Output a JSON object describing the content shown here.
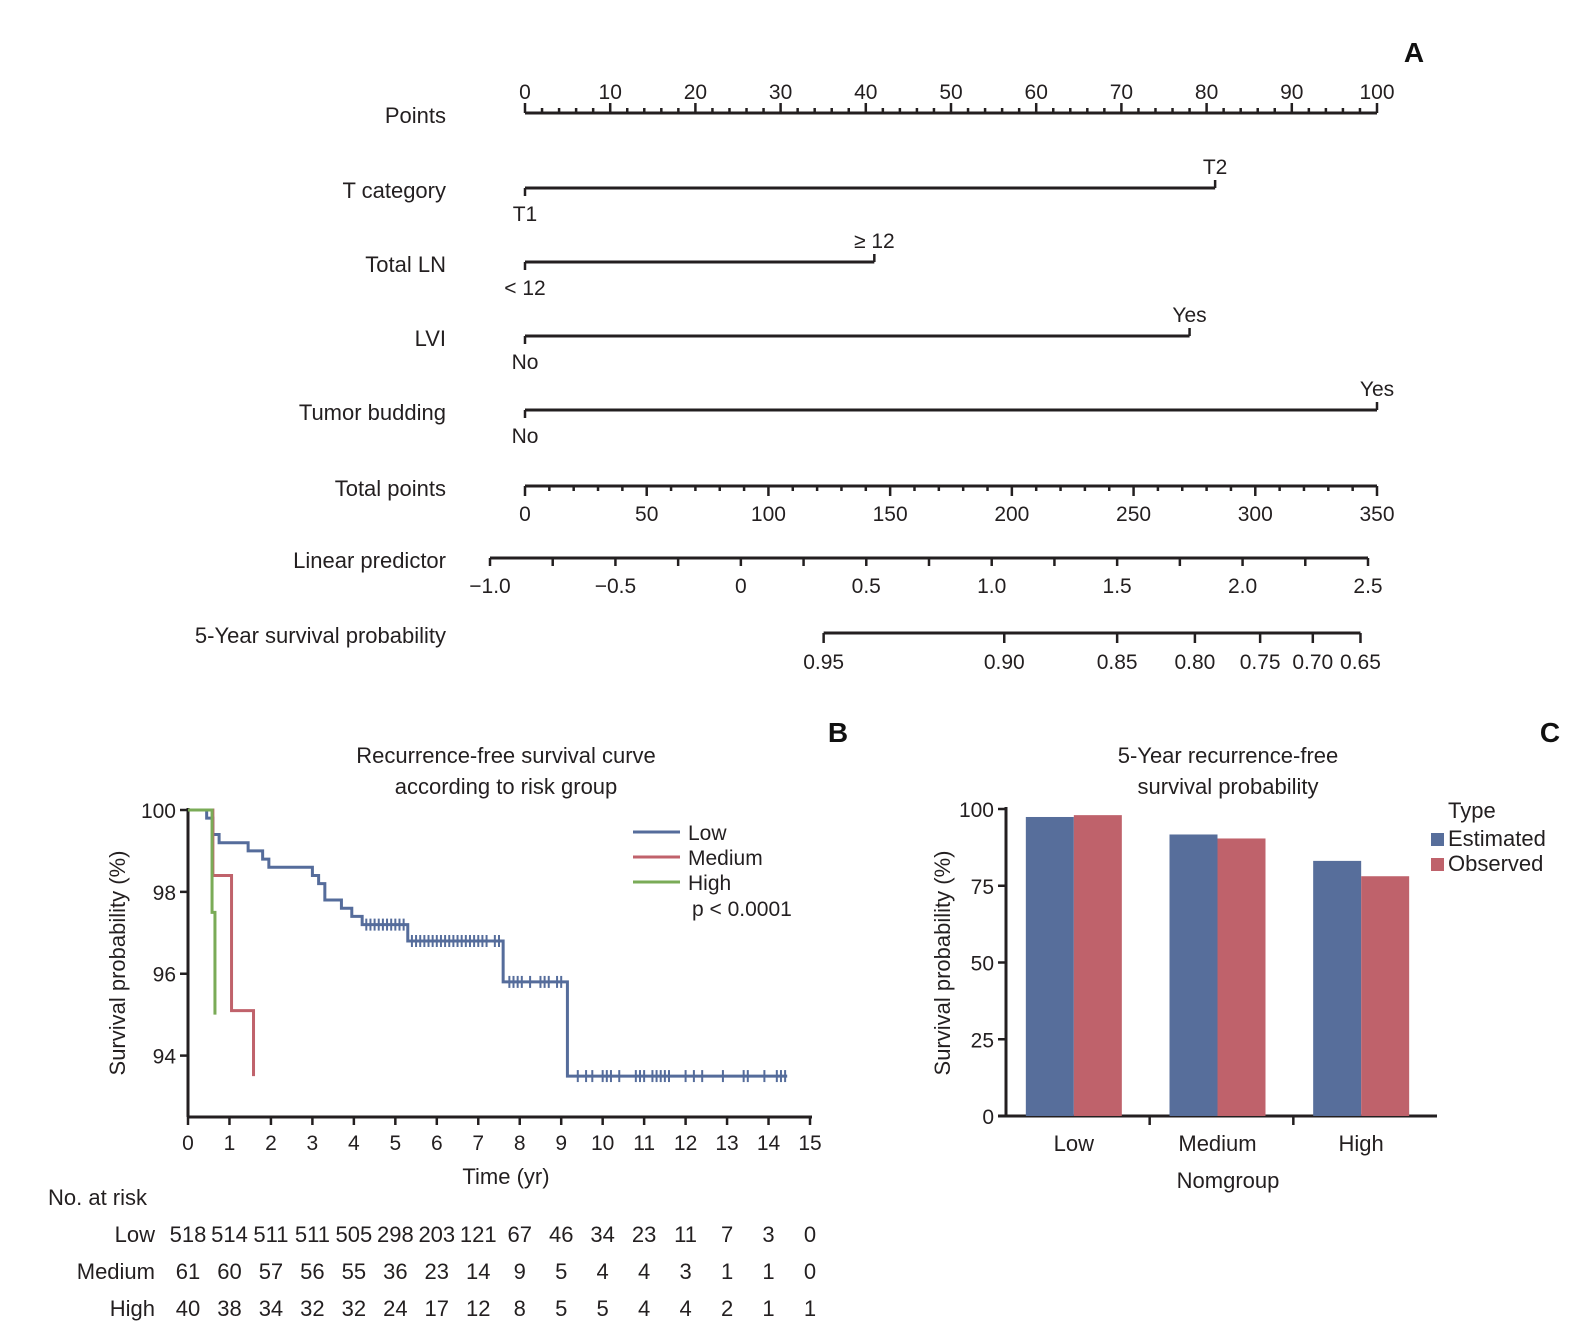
{
  "panels": {
    "a": "A",
    "b": "B",
    "c": "C"
  },
  "chart_data": [
    {
      "type": "nomogram",
      "panel": "A",
      "rows": [
        {
          "label": "Points",
          "kind": "axis",
          "range": [
            0,
            100
          ],
          "major_ticks": [
            0,
            10,
            20,
            30,
            40,
            50,
            60,
            70,
            80,
            90,
            100
          ],
          "minor_step": 2
        },
        {
          "label": "T category",
          "kind": "factor",
          "levels": [
            {
              "name": "T1",
              "points": 0
            },
            {
              "name": "T2",
              "points": 81
            }
          ]
        },
        {
          "label": "Total LN",
          "kind": "factor",
          "levels": [
            {
              "name": "< 12",
              "points": 0
            },
            {
              "name": "≥ 12",
              "points": 41
            }
          ]
        },
        {
          "label": "LVI",
          "kind": "factor",
          "levels": [
            {
              "name": "No",
              "points": 0
            },
            {
              "name": "Yes",
              "points": 78
            }
          ]
        },
        {
          "label": "Tumor budding",
          "kind": "factor",
          "levels": [
            {
              "name": "No",
              "points": 0
            },
            {
              "name": "Yes",
              "points": 100
            }
          ]
        },
        {
          "label": "Total points",
          "kind": "axis",
          "range": [
            0,
            350
          ],
          "major_ticks": [
            0,
            50,
            100,
            150,
            200,
            250,
            300,
            350
          ],
          "minor_step": 10
        },
        {
          "label": "Linear predictor",
          "kind": "axis",
          "range": [
            -1.0,
            2.5
          ],
          "major_ticks": [
            -1.0,
            -0.5,
            0,
            0.5,
            1.0,
            1.5,
            2.0,
            2.5
          ],
          "tick_labels": [
            "−1.0",
            "−0.5",
            "0",
            "0.5",
            "1.0",
            "1.5",
            "2.0",
            "2.5"
          ],
          "minor_step": 0.25
        },
        {
          "label": "5-Year survival probability",
          "kind": "prob",
          "ticks": [
            0.95,
            0.9,
            0.85,
            0.8,
            0.75,
            0.7,
            0.65
          ],
          "tick_labels": [
            "0.95",
            "0.90",
            "0.85",
            "0.80",
            "0.75",
            "0.70",
            "0.65"
          ],
          "lp_positions": [
            0.33,
            1.05,
            1.5,
            1.81,
            2.07,
            2.28,
            2.47
          ]
        }
      ]
    },
    {
      "type": "line",
      "subtype": "kaplan-meier",
      "panel": "B",
      "title": "Recurrence-free survival curve according to risk group",
      "title_lines": [
        "Recurrence-free survival curve",
        "according to risk group"
      ],
      "xlabel": "Time (yr)",
      "ylabel": "Survival probability (%)",
      "xlim": [
        0,
        15
      ],
      "ylim": [
        92.5,
        100
      ],
      "x_ticks": [
        0,
        1,
        2,
        3,
        4,
        5,
        6,
        7,
        8,
        9,
        10,
        11,
        12,
        13,
        14,
        15
      ],
      "y_ticks": [
        94,
        96,
        98,
        100
      ],
      "legend": {
        "position": "top-right",
        "entries": [
          "Low",
          "Medium",
          "High"
        ]
      },
      "annotation": "p < 0.0001",
      "series": [
        {
          "name": "Low",
          "color": "#556c9b",
          "steps": [
            [
              0,
              100
            ],
            [
              0.45,
              99.8
            ],
            [
              0.6,
              99.4
            ],
            [
              0.75,
              99.2
            ],
            [
              1.45,
              99.0
            ],
            [
              1.8,
              98.8
            ],
            [
              1.95,
              98.6
            ],
            [
              3.0,
              98.4
            ],
            [
              3.15,
              98.2
            ],
            [
              3.3,
              97.8
            ],
            [
              3.7,
              97.6
            ],
            [
              3.95,
              97.4
            ],
            [
              4.2,
              97.2
            ],
            [
              5.3,
              96.8
            ],
            [
              7.6,
              95.8
            ],
            [
              9.15,
              93.5
            ],
            [
              14.45,
              93.5
            ]
          ],
          "censor_times": [
            4.3,
            4.4,
            4.5,
            4.6,
            4.7,
            4.8,
            4.9,
            5.0,
            5.1,
            5.2,
            5.4,
            5.5,
            5.6,
            5.7,
            5.8,
            5.9,
            6.0,
            6.1,
            6.2,
            6.3,
            6.4,
            6.5,
            6.6,
            6.7,
            6.8,
            6.9,
            7.0,
            7.1,
            7.2,
            7.4,
            7.5,
            7.75,
            7.85,
            7.95,
            8.05,
            8.25,
            8.5,
            8.6,
            8.7,
            8.9,
            9.0,
            9.4,
            9.6,
            9.75,
            10.0,
            10.1,
            10.2,
            10.4,
            10.8,
            10.9,
            11.0,
            11.2,
            11.3,
            11.4,
            11.5,
            11.6,
            12.0,
            12.2,
            12.4,
            12.9,
            13.4,
            13.5,
            13.9,
            14.2,
            14.3,
            14.4
          ]
        },
        {
          "name": "Medium",
          "color": "#c0626b",
          "steps": [
            [
              0,
              100
            ],
            [
              0.6,
              98.4
            ],
            [
              1.05,
              95.1
            ],
            [
              1.58,
              93.5
            ]
          ]
        },
        {
          "name": "High",
          "color": "#7aab57",
          "steps": [
            [
              0,
              100
            ],
            [
              0.55,
              100
            ],
            [
              0.58,
              97.5
            ],
            [
              0.65,
              95.0
            ]
          ]
        }
      ],
      "risk_table": {
        "title": "No. at risk",
        "times": [
          0,
          1,
          2,
          3,
          4,
          5,
          6,
          7,
          8,
          9,
          10,
          11,
          12,
          13,
          14,
          15
        ],
        "rows": [
          {
            "group": "Low",
            "values": [
              518,
              514,
              511,
              511,
              505,
              298,
              203,
              121,
              67,
              46,
              34,
              23,
              11,
              7,
              3,
              0
            ]
          },
          {
            "group": "Medium",
            "values": [
              61,
              60,
              57,
              56,
              55,
              36,
              23,
              14,
              9,
              5,
              4,
              4,
              3,
              1,
              1,
              0
            ]
          },
          {
            "group": "High",
            "values": [
              40,
              38,
              34,
              32,
              32,
              24,
              17,
              12,
              8,
              5,
              5,
              4,
              4,
              2,
              1,
              1
            ]
          }
        ]
      }
    },
    {
      "type": "bar",
      "panel": "C",
      "title": "5-Year recurrence-free survival probability",
      "title_lines": [
        "5-Year recurrence-free",
        "survival probability"
      ],
      "xlabel": "Nomgroup",
      "ylabel": "Survival probability (%)",
      "ylim": [
        0,
        100
      ],
      "y_ticks": [
        0,
        25,
        50,
        75,
        100
      ],
      "categories": [
        "Low",
        "Medium",
        "High"
      ],
      "legend": {
        "title": "Type",
        "position": "right"
      },
      "series": [
        {
          "name": "Estimated",
          "color": "#576e9b",
          "values": [
            97.4,
            91.7,
            83.1
          ]
        },
        {
          "name": "Observed",
          "color": "#bf626b",
          "values": [
            98.0,
            90.4,
            78.1
          ]
        }
      ]
    }
  ]
}
